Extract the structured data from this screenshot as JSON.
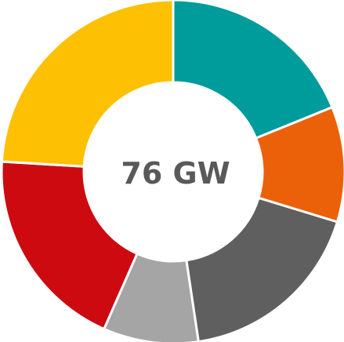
{
  "chart_data": {
    "type": "pie",
    "donut": true,
    "center_label": "76 GW",
    "title": "",
    "series": [
      {
        "values": [
          20.0,
          11.5,
          19.0,
          9.5,
          20.5,
          25.5
        ],
        "colors": [
          "#009b9b",
          "#eb6109",
          "#5f5f5f",
          "#a5a5a5",
          "#cc0a10",
          "#fdc003"
        ]
      }
    ],
    "start_angle_deg": 0,
    "direction": "clockwise",
    "legend": "none"
  },
  "colors": {
    "label": "#595959",
    "separator": "#ffffff"
  }
}
